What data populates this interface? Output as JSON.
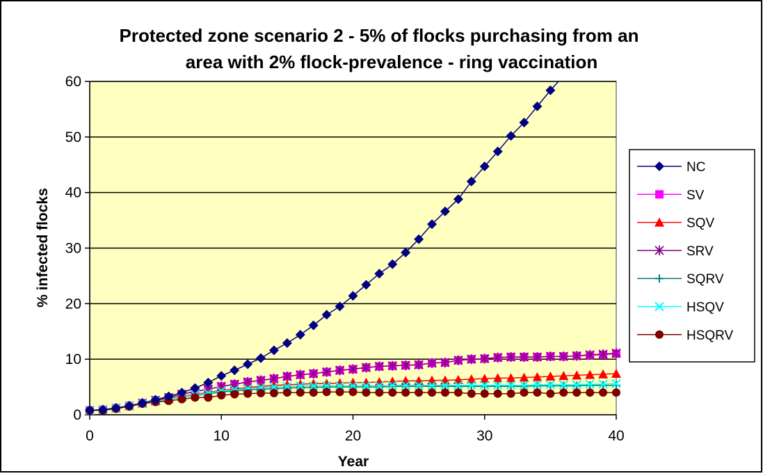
{
  "chart_data": {
    "type": "line",
    "title_line1": "Protected zone scenario 2 - 5% of flocks purchasing from an",
    "title_line2": "area with 2% flock-prevalence  - ring vaccination",
    "xlabel": "Year",
    "ylabel": "% infected flocks",
    "xlim": [
      0,
      40
    ],
    "ylim": [
      0,
      60
    ],
    "xticks": [
      0,
      10,
      20,
      30,
      40
    ],
    "yticks": [
      0,
      10,
      20,
      30,
      40,
      50,
      60
    ],
    "grid": "horizontal",
    "legend_position": "right",
    "plot_background": "#FFFFC0",
    "x": [
      0,
      1,
      2,
      3,
      4,
      5,
      6,
      7,
      8,
      9,
      10,
      11,
      12,
      13,
      14,
      15,
      16,
      17,
      18,
      19,
      20,
      21,
      22,
      23,
      24,
      25,
      26,
      27,
      28,
      29,
      30,
      31,
      32,
      33,
      34,
      35,
      36,
      37,
      38,
      39,
      40
    ],
    "series": [
      {
        "name": "NC",
        "color": "#000080",
        "marker": "diamond",
        "values": [
          0.8,
          0.9,
          1.2,
          1.6,
          2.1,
          2.7,
          3.3,
          4.0,
          4.8,
          5.8,
          7.0,
          8.0,
          9.1,
          10.2,
          11.6,
          12.9,
          14.4,
          16.1,
          18.0,
          19.5,
          21.4,
          23.4,
          25.4,
          27.1,
          29.2,
          31.6,
          34.3,
          36.6,
          38.8,
          42.0,
          44.7,
          47.4,
          50.2,
          52.6,
          55.5,
          58.4,
          61.0,
          null,
          null,
          null,
          null
        ]
      },
      {
        "name": "SV",
        "color": "#FF00FF",
        "marker": "square",
        "values": [
          0.8,
          0.9,
          1.2,
          1.6,
          2.1,
          2.6,
          3.1,
          3.7,
          4.2,
          4.6,
          5.1,
          5.5,
          5.9,
          6.2,
          6.5,
          6.9,
          7.2,
          7.4,
          7.7,
          8.0,
          8.2,
          8.5,
          8.7,
          8.8,
          8.9,
          9.0,
          9.3,
          9.4,
          9.8,
          10.0,
          10.1,
          10.3,
          10.4,
          10.4,
          10.4,
          10.5,
          10.5,
          10.6,
          10.7,
          10.8,
          11.0
        ]
      },
      {
        "name": "SQV",
        "color": "#FF0000",
        "marker": "triangle",
        "values": [
          0.8,
          0.9,
          1.2,
          1.6,
          2.1,
          2.5,
          2.9,
          3.3,
          3.7,
          4.0,
          4.4,
          4.6,
          4.9,
          5.1,
          5.3,
          5.4,
          5.5,
          5.6,
          5.6,
          5.7,
          5.8,
          5.8,
          5.9,
          6.0,
          6.1,
          6.1,
          6.2,
          6.2,
          6.3,
          6.4,
          6.5,
          6.6,
          6.6,
          6.7,
          6.8,
          6.9,
          7.0,
          7.1,
          7.2,
          7.3,
          7.4
        ]
      },
      {
        "name": "SRV",
        "color": "#800080",
        "marker": "asterisk",
        "values": [
          0.8,
          0.9,
          1.2,
          1.6,
          2.1,
          2.6,
          3.1,
          3.7,
          4.2,
          4.6,
          5.1,
          5.5,
          5.9,
          6.2,
          6.5,
          6.9,
          7.2,
          7.4,
          7.7,
          8.0,
          8.2,
          8.5,
          8.7,
          8.8,
          8.9,
          9.0,
          9.3,
          9.4,
          9.8,
          10.0,
          10.1,
          10.3,
          10.4,
          10.4,
          10.4,
          10.5,
          10.5,
          10.6,
          10.8,
          10.9,
          11.1
        ]
      },
      {
        "name": "SQRV",
        "color": "#008080",
        "marker": "plus",
        "values": [
          0.8,
          0.9,
          1.2,
          1.6,
          2.0,
          2.4,
          2.8,
          3.2,
          3.5,
          3.8,
          4.1,
          4.3,
          4.5,
          4.6,
          4.7,
          4.8,
          4.9,
          4.9,
          5.0,
          5.0,
          5.0,
          5.0,
          5.0,
          5.1,
          5.1,
          5.1,
          5.1,
          5.1,
          5.1,
          5.1,
          5.1,
          5.1,
          5.1,
          5.1,
          5.2,
          5.2,
          5.2,
          5.2,
          5.3,
          5.3,
          5.3
        ]
      },
      {
        "name": "HSQV",
        "color": "#00FFFF",
        "marker": "x",
        "values": [
          0.8,
          0.9,
          1.2,
          1.6,
          2.0,
          2.4,
          2.8,
          3.2,
          3.6,
          3.9,
          4.3,
          4.5,
          4.7,
          4.9,
          5.0,
          5.1,
          5.2,
          5.2,
          5.2,
          5.2,
          5.2,
          5.2,
          5.2,
          5.3,
          5.3,
          5.3,
          5.3,
          5.3,
          5.3,
          5.3,
          5.3,
          5.3,
          5.3,
          5.3,
          5.4,
          5.4,
          5.4,
          5.4,
          5.5,
          5.5,
          5.6
        ]
      },
      {
        "name": "HSQRV",
        "color": "#800000",
        "marker": "circle",
        "values": [
          0.8,
          0.8,
          1.1,
          1.5,
          2.0,
          2.3,
          2.5,
          2.8,
          3.1,
          3.1,
          3.5,
          3.7,
          3.8,
          3.9,
          3.9,
          4.0,
          4.0,
          4.0,
          4.1,
          4.1,
          4.1,
          4.0,
          4.0,
          4.0,
          4.0,
          4.0,
          4.0,
          4.0,
          4.0,
          3.8,
          3.8,
          3.8,
          3.8,
          4.0,
          4.0,
          3.8,
          4.0,
          4.0,
          4.0,
          4.0,
          4.0
        ]
      }
    ]
  }
}
